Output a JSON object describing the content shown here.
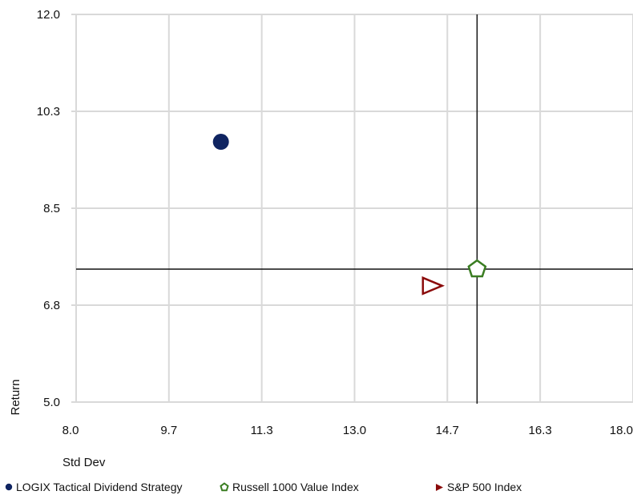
{
  "chart_data": {
    "type": "scatter",
    "xlabel": "Std Dev",
    "ylabel": "Return",
    "xlim": [
      8.0,
      18.0
    ],
    "ylim": [
      5.0,
      12.0
    ],
    "x_ticks": [
      "8.0",
      "9.7",
      "11.3",
      "13.0",
      "14.7",
      "16.3",
      "18.0"
    ],
    "y_ticks": [
      "5.0",
      "6.8",
      "8.5",
      "10.3",
      "12.0"
    ],
    "x_tick_values": [
      8.0,
      9.666,
      11.333,
      13.0,
      14.666,
      16.333,
      18.0
    ],
    "y_tick_values": [
      5.0,
      6.75,
      8.5,
      10.25,
      12.0
    ],
    "grid": true,
    "reference_lines": {
      "x": 15.2,
      "y": 7.4
    },
    "series": [
      {
        "name": "LOGIX Tactical Dividend Strategy",
        "marker": "circle",
        "color": "#0f2461",
        "x": 10.6,
        "y": 9.7
      },
      {
        "name": "Russell 1000 Value Index",
        "marker": "pentagon",
        "color": "#3a7d22",
        "x": 15.2,
        "y": 7.4
      },
      {
        "name": "S&P 500 Index",
        "marker": "triangle-right",
        "color": "#8b0b0b",
        "x": 14.4,
        "y": 7.1
      }
    ],
    "legend_position": "bottom"
  }
}
